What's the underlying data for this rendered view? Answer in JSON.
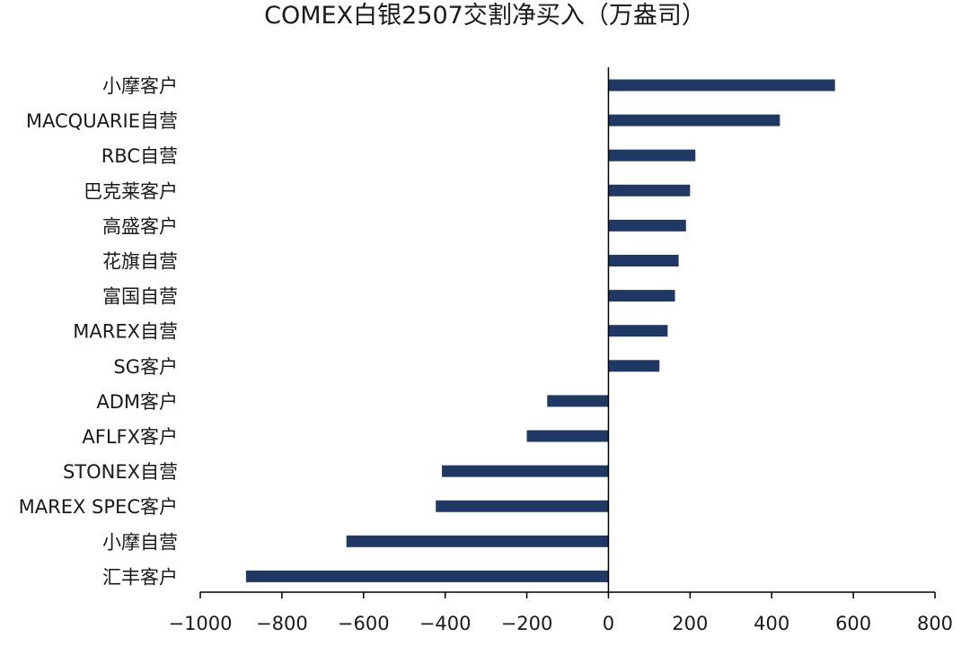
{
  "chart_data": {
    "type": "bar",
    "orientation": "horizontal",
    "title": "COMEX白银2507交割净买入（万盎司）",
    "categories": [
      "小摩客户",
      "MACQUARIE自营",
      "RBC自营",
      "巴克莱客户",
      "高盛客户",
      "花旗自营",
      "富国自营",
      "MAREX自营",
      "SG客户",
      "ADM客户",
      "AFLFX客户",
      "STONEX自营",
      "MAREX SPEC客户",
      "小摩自营",
      "汇丰客户"
    ],
    "values": [
      555,
      420,
      213,
      200,
      190,
      172,
      163,
      145,
      125,
      -150,
      -200,
      -408,
      -423,
      -642,
      -888
    ],
    "xlim": [
      -1000,
      800
    ],
    "xticks": [
      -1000,
      -800,
      -600,
      -400,
      -200,
      0,
      200,
      400,
      600,
      800
    ],
    "xtick_labels": [
      "−1000",
      "−800",
      "−600",
      "−400",
      "−200",
      "0",
      "200",
      "400",
      "600",
      "800"
    ],
    "bar_color": "#203864",
    "grid": false,
    "legend": "none"
  }
}
